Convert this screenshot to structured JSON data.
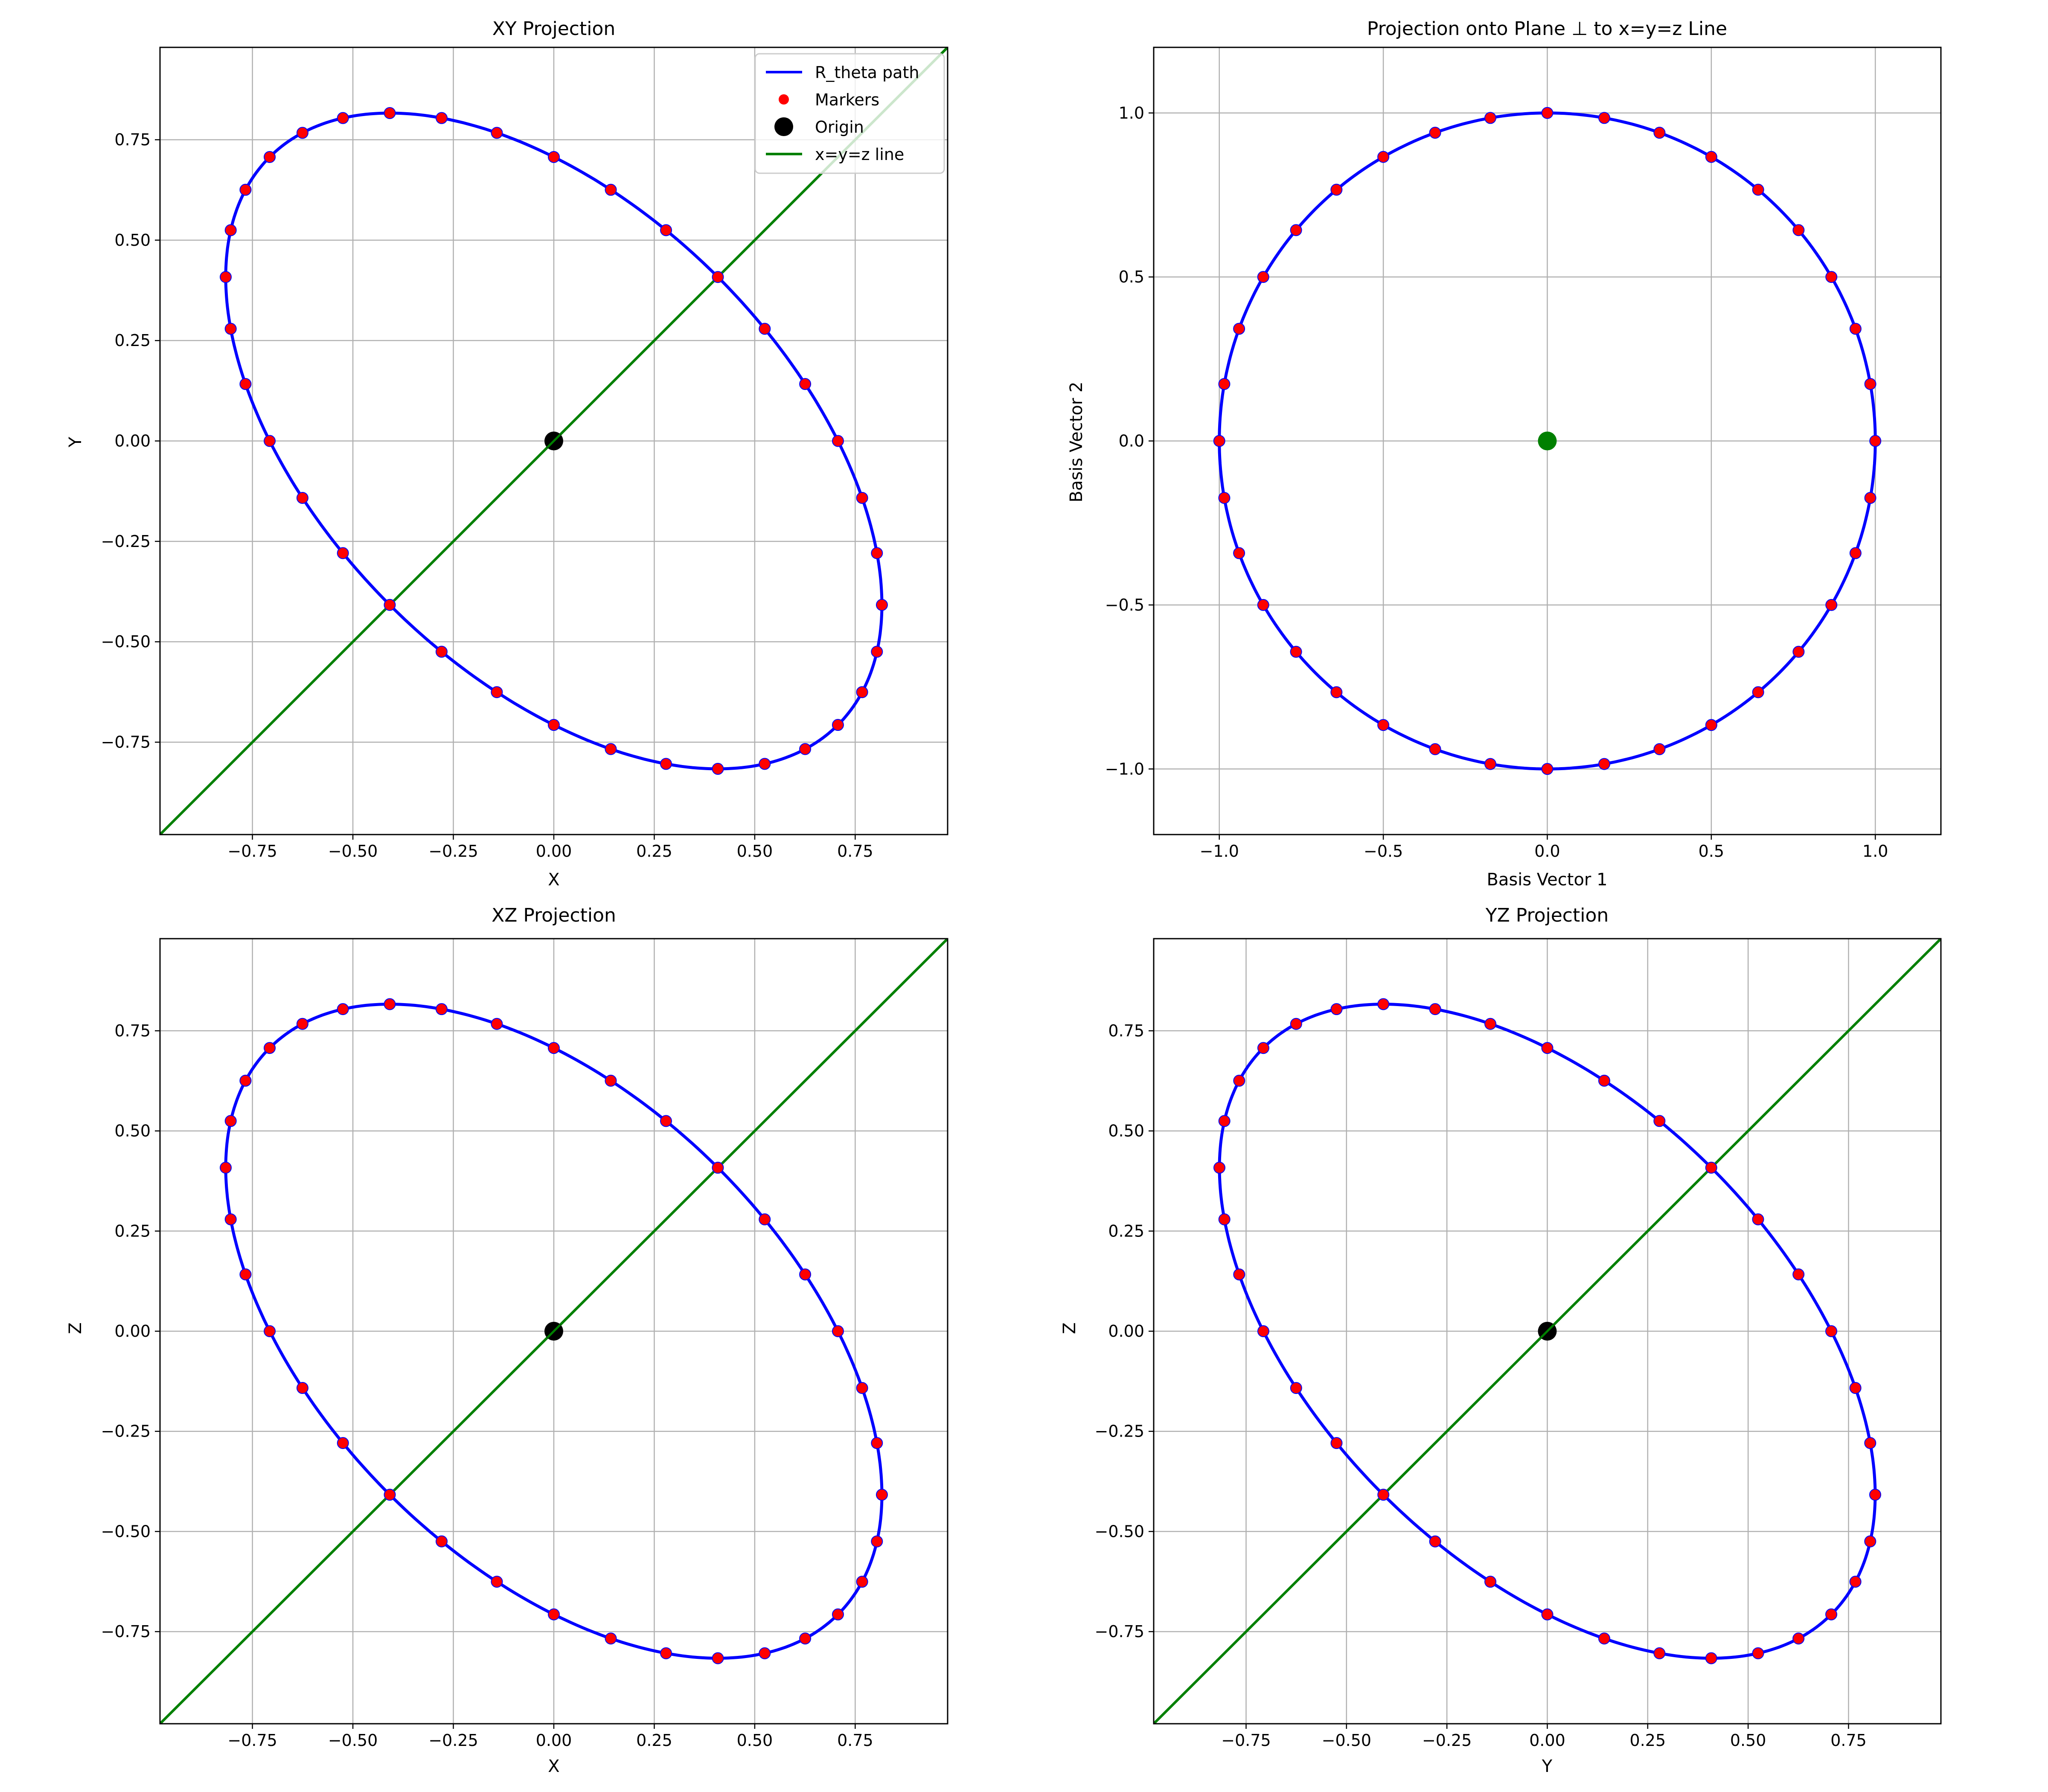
{
  "colors": {
    "path": "#0000ff",
    "marker": "#ff0000",
    "origin": "#000000",
    "line": "#008000",
    "center": "#008000",
    "grid": "#b0b0b0"
  },
  "chart_data": [
    {
      "type": "line",
      "title": "XY Projection",
      "xlabel": "X",
      "ylabel": "Y",
      "xlim": [
        -0.98,
        0.98
      ],
      "ylim": [
        -0.98,
        0.98
      ],
      "xticks": [
        "−0.75",
        "−0.50",
        "−0.25",
        "0.00",
        "0.25",
        "0.50",
        "0.75"
      ],
      "yticks": [
        "−0.75",
        "−0.50",
        "−0.25",
        "0.00",
        "0.25",
        "0.50",
        "0.75"
      ],
      "tick_values": [
        -0.75,
        -0.5,
        -0.25,
        0,
        0.25,
        0.5,
        0.75
      ],
      "grid": true,
      "ellipse": {
        "b": 0.4082,
        "c": 0.7071,
        "order": [
          0,
          1
        ]
      },
      "legend": {
        "position": "top-right",
        "entries": [
          "R_theta path",
          "Markers",
          "Origin",
          "x=y=z line"
        ]
      }
    },
    {
      "type": "line",
      "title": "Projection onto Plane ⊥ to x=y=z Line",
      "xlabel": "Basis Vector 1",
      "ylabel": "Basis Vector 2",
      "xlim": [
        -1.2,
        1.2
      ],
      "ylim": [
        -1.2,
        1.2
      ],
      "xticks": [
        "−1.0",
        "−0.5",
        "0.0",
        "0.5",
        "1.0"
      ],
      "yticks": [
        "−1.0",
        "−0.5",
        "0.0",
        "0.5",
        "1.0"
      ],
      "tick_values": [
        -1.0,
        -0.5,
        0,
        0.5,
        1.0
      ],
      "grid": true,
      "circle_radius": 1.0
    },
    {
      "type": "line",
      "title": "XZ Projection",
      "xlabel": "X",
      "ylabel": "Z",
      "xlim": [
        -0.98,
        0.98
      ],
      "ylim": [
        -0.98,
        0.98
      ],
      "xticks": [
        "−0.75",
        "−0.50",
        "−0.25",
        "0.00",
        "0.25",
        "0.50",
        "0.75"
      ],
      "yticks": [
        "−0.75",
        "−0.50",
        "−0.25",
        "0.00",
        "0.25",
        "0.50",
        "0.75"
      ],
      "tick_values": [
        -0.75,
        -0.5,
        -0.25,
        0,
        0.25,
        0.5,
        0.75
      ],
      "grid": true,
      "ellipse": {
        "b": 0.4082,
        "c": 0.7071,
        "order": [
          0,
          2
        ]
      }
    },
    {
      "type": "line",
      "title": "YZ Projection",
      "xlabel": "Y",
      "ylabel": "Z",
      "xlim": [
        -0.98,
        0.98
      ],
      "ylim": [
        -0.98,
        0.98
      ],
      "xticks": [
        "−0.75",
        "−0.50",
        "−0.25",
        "0.00",
        "0.25",
        "0.50",
        "0.75"
      ],
      "yticks": [
        "−0.75",
        "−0.50",
        "−0.25",
        "0.00",
        "0.25",
        "0.50",
        "0.75"
      ],
      "tick_values": [
        -0.75,
        -0.5,
        -0.25,
        0,
        0.25,
        0.5,
        0.75
      ],
      "grid": true,
      "ellipse": {
        "b": 0.4082,
        "c": 0.7071,
        "order": [
          1,
          2
        ]
      }
    }
  ],
  "markers_count": 36
}
